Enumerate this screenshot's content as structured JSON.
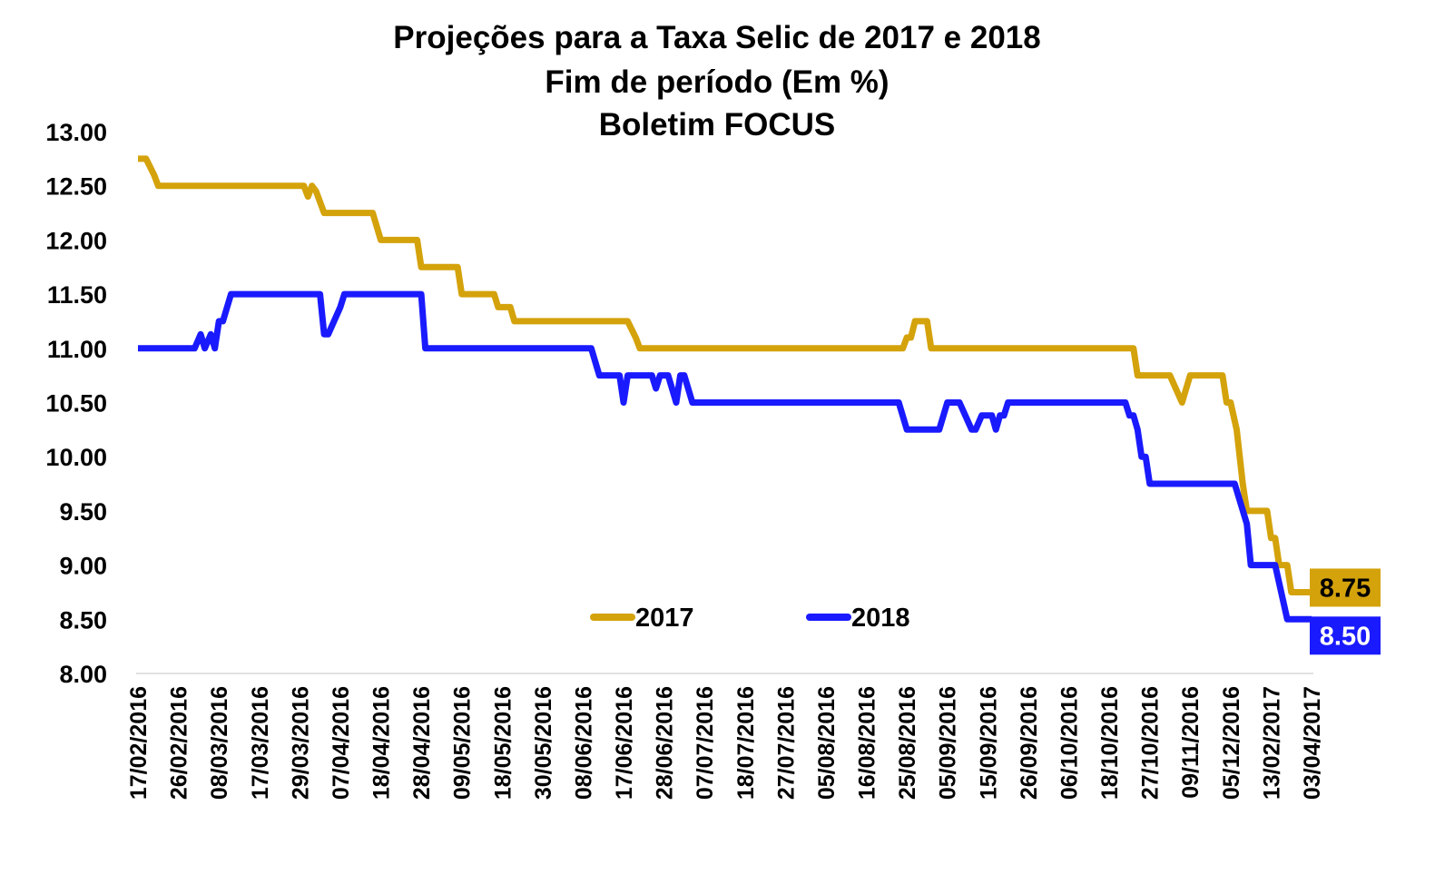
{
  "chart_data": {
    "type": "line",
    "title_lines": [
      "Projeções para a Taxa Selic de  2017 e 2018",
      "Fim de período (Em %)",
      "Boletim FOCUS"
    ],
    "xlabel": "",
    "ylabel": "",
    "ylim": [
      8.0,
      13.0
    ],
    "yticks": [
      "13.00",
      "12.50",
      "12.00",
      "11.50",
      "11.00",
      "10.50",
      "10.00",
      "9.50",
      "9.00",
      "8.50",
      "8.00"
    ],
    "x_tick_labels": [
      "17/02/2016",
      "26/02/2016",
      "08/03/2016",
      "17/03/2016",
      "29/03/2016",
      "07/04/2016",
      "18/04/2016",
      "28/04/2016",
      "09/05/2016",
      "18/05/2016",
      "30/05/2016",
      "08/06/2016",
      "17/06/2016",
      "28/06/2016",
      "07/07/2016",
      "18/07/2016",
      "27/07/2016",
      "05/08/2016",
      "16/08/2016",
      "25/08/2016",
      "05/09/2016",
      "15/09/2016",
      "26/09/2016",
      "06/10/2016",
      "18/10/2016",
      "27/10/2016",
      "09/11/2016",
      "05/12/2016",
      "13/02/2017",
      "03/04/2017"
    ],
    "x_index_range": [
      0,
      29
    ],
    "grid": false,
    "legend_position": "bottom-center",
    "series": [
      {
        "name": "2017",
        "color": "#D4A20B",
        "end_label": "8.75",
        "end_label_bg": "#D4A20B",
        "end_label_color": "#000000",
        "points": [
          [
            0,
            12.75
          ],
          [
            0.2,
            12.75
          ],
          [
            0.4,
            12.6
          ],
          [
            0.5,
            12.5
          ],
          [
            4.1,
            12.5
          ],
          [
            4.2,
            12.4
          ],
          [
            4.3,
            12.5
          ],
          [
            4.4,
            12.45
          ],
          [
            4.6,
            12.25
          ],
          [
            5.8,
            12.25
          ],
          [
            6.0,
            12.0
          ],
          [
            6.9,
            12.0
          ],
          [
            7.0,
            11.75
          ],
          [
            7.9,
            11.75
          ],
          [
            8.0,
            11.5
          ],
          [
            8.8,
            11.5
          ],
          [
            8.9,
            11.38
          ],
          [
            9.2,
            11.38
          ],
          [
            9.3,
            11.25
          ],
          [
            12.1,
            11.25
          ],
          [
            12.3,
            11.1
          ],
          [
            12.4,
            11.0
          ],
          [
            18.9,
            11.0
          ],
          [
            19.0,
            11.1
          ],
          [
            19.1,
            11.1
          ],
          [
            19.2,
            11.25
          ],
          [
            19.5,
            11.25
          ],
          [
            19.6,
            11.0
          ],
          [
            24.6,
            11.0
          ],
          [
            24.7,
            10.75
          ],
          [
            25.5,
            10.75
          ],
          [
            25.8,
            10.5
          ],
          [
            26.0,
            10.75
          ],
          [
            26.8,
            10.75
          ],
          [
            26.9,
            10.5
          ],
          [
            27.0,
            10.5
          ],
          [
            27.15,
            10.25
          ],
          [
            27.3,
            9.75
          ],
          [
            27.4,
            9.5
          ],
          [
            27.9,
            9.5
          ],
          [
            28.0,
            9.25
          ],
          [
            28.1,
            9.25
          ],
          [
            28.2,
            9.0
          ],
          [
            28.4,
            9.0
          ],
          [
            28.5,
            8.75
          ],
          [
            29,
            8.75
          ]
        ]
      },
      {
        "name": "2018",
        "color": "#1A1AFF",
        "end_label": "8.50",
        "end_label_bg": "#1A1AFF",
        "end_label_color": "#FFFFFF",
        "points": [
          [
            0,
            11.0
          ],
          [
            1.4,
            11.0
          ],
          [
            1.55,
            11.13
          ],
          [
            1.65,
            11.0
          ],
          [
            1.8,
            11.13
          ],
          [
            1.9,
            11.0
          ],
          [
            2.0,
            11.25
          ],
          [
            2.1,
            11.25
          ],
          [
            2.3,
            11.5
          ],
          [
            4.5,
            11.5
          ],
          [
            4.6,
            11.13
          ],
          [
            4.7,
            11.13
          ],
          [
            5.0,
            11.38
          ],
          [
            5.1,
            11.5
          ],
          [
            7.0,
            11.5
          ],
          [
            7.1,
            11.0
          ],
          [
            11.2,
            11.0
          ],
          [
            11.4,
            10.75
          ],
          [
            11.9,
            10.75
          ],
          [
            12.0,
            10.5
          ],
          [
            12.1,
            10.75
          ],
          [
            12.7,
            10.75
          ],
          [
            12.8,
            10.63
          ],
          [
            12.9,
            10.75
          ],
          [
            13.1,
            10.75
          ],
          [
            13.3,
            10.5
          ],
          [
            13.4,
            10.75
          ],
          [
            13.5,
            10.75
          ],
          [
            13.7,
            10.5
          ],
          [
            18.8,
            10.5
          ],
          [
            19.0,
            10.25
          ],
          [
            19.8,
            10.25
          ],
          [
            20.0,
            10.5
          ],
          [
            20.3,
            10.5
          ],
          [
            20.6,
            10.25
          ],
          [
            20.7,
            10.25
          ],
          [
            20.85,
            10.38
          ],
          [
            21.1,
            10.38
          ],
          [
            21.2,
            10.25
          ],
          [
            21.3,
            10.38
          ],
          [
            21.4,
            10.38
          ],
          [
            21.5,
            10.5
          ],
          [
            24.4,
            10.5
          ],
          [
            24.5,
            10.38
          ],
          [
            24.6,
            10.38
          ],
          [
            24.7,
            10.25
          ],
          [
            24.8,
            10.0
          ],
          [
            24.9,
            10.0
          ],
          [
            25.0,
            9.75
          ],
          [
            27.1,
            9.75
          ],
          [
            27.4,
            9.38
          ],
          [
            27.5,
            9.0
          ],
          [
            28.1,
            9.0
          ],
          [
            28.4,
            8.5
          ],
          [
            29,
            8.5
          ]
        ]
      }
    ]
  }
}
